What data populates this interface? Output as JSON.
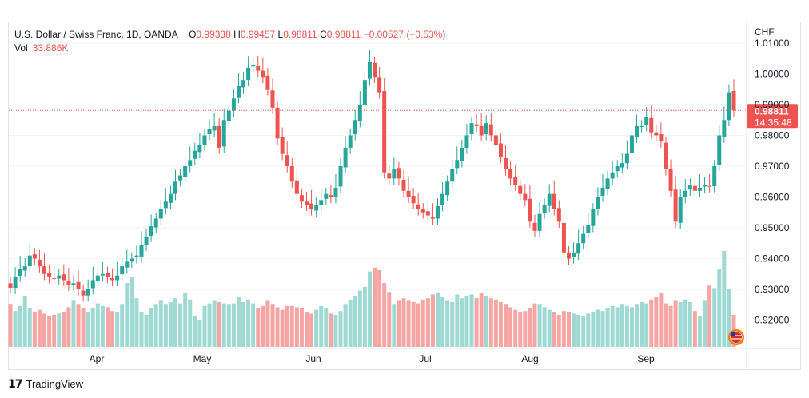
{
  "header": {
    "symbol": "U.S. Dollar / Swiss Franc, 1D, OANDA",
    "o_label": "O",
    "o_value": "0.99338",
    "h_label": "H",
    "h_value": "0.99457",
    "l_label": "L",
    "l_value": "0.98811",
    "c_label": "C",
    "c_value": "0.98811",
    "change": "−0.00527 (−0.53%)",
    "vol_label": "Vol",
    "vol_value": "33.886K"
  },
  "price_tag": {
    "price": "0.98811",
    "countdown": "14:35:48"
  },
  "footer": {
    "brand": "TradingView"
  },
  "colors": {
    "up": "#26a69a",
    "down": "#ef5350",
    "up_vol": "#9fd9d3",
    "down_vol": "#f5a6a4"
  },
  "chart_data": {
    "type": "candlestick",
    "currency_label": "CHF",
    "y_ticks": [
      "1.01000",
      "1.00000",
      "0.99000",
      "0.98000",
      "0.97000",
      "0.96000",
      "0.95000",
      "0.94000",
      "0.93000",
      "0.92000"
    ],
    "x_labels": [
      "Apr",
      "May",
      "Jun",
      "Jul",
      "Aug",
      "Sep"
    ],
    "ylim": [
      0.912,
      1.012
    ],
    "last_price": 0.98811,
    "close": [
      0.9305,
      0.934,
      0.9365,
      0.9375,
      0.941,
      0.94,
      0.9375,
      0.935,
      0.934,
      0.9335,
      0.9345,
      0.933,
      0.9315,
      0.932,
      0.93,
      0.928,
      0.93,
      0.933,
      0.9345,
      0.935,
      0.934,
      0.933,
      0.9345,
      0.9375,
      0.939,
      0.94,
      0.941,
      0.9445,
      0.947,
      0.9505,
      0.953,
      0.956,
      0.9585,
      0.961,
      0.965,
      0.967,
      0.97,
      0.972,
      0.975,
      0.977,
      0.98,
      0.982,
      0.983,
      0.976,
      0.985,
      0.988,
      0.992,
      0.996,
      0.998,
      1.002,
      1.003,
      1.001,
      0.999,
      0.995,
      0.989,
      0.979,
      0.974,
      0.97,
      0.965,
      0.961,
      0.9585,
      0.9575,
      0.956,
      0.9575,
      0.959,
      0.961,
      0.96,
      0.963,
      0.97,
      0.976,
      0.98,
      0.985,
      0.99,
      0.998,
      1.004,
      0.999,
      0.994,
      0.968,
      0.966,
      0.969,
      0.966,
      0.962,
      0.96,
      0.958,
      0.956,
      0.955,
      0.954,
      0.953,
      0.957,
      0.961,
      0.965,
      0.969,
      0.972,
      0.976,
      0.98,
      0.984,
      0.983,
      0.98,
      0.984,
      0.98,
      0.977,
      0.973,
      0.969,
      0.966,
      0.964,
      0.961,
      0.959,
      0.952,
      0.949,
      0.9545,
      0.9575,
      0.961,
      0.956,
      0.952,
      0.942,
      0.94,
      0.942,
      0.945,
      0.948,
      0.951,
      0.956,
      0.96,
      0.963,
      0.966,
      0.968,
      0.97,
      0.971,
      0.974,
      0.98,
      0.983,
      0.983,
      0.986,
      0.981,
      0.98,
      0.978,
      0.969,
      0.962,
      0.952,
      0.96,
      0.962,
      0.964,
      0.962,
      0.963,
      0.964,
      0.9635,
      0.97,
      0.98,
      0.985,
      0.994,
      0.9881
    ],
    "volume_rel": [
      0.33,
      0.28,
      0.32,
      0.4,
      0.3,
      0.27,
      0.29,
      0.26,
      0.24,
      0.25,
      0.26,
      0.27,
      0.31,
      0.36,
      0.33,
      0.3,
      0.27,
      0.3,
      0.34,
      0.32,
      0.31,
      0.28,
      0.27,
      0.33,
      0.5,
      0.55,
      0.38,
      0.27,
      0.25,
      0.3,
      0.33,
      0.36,
      0.33,
      0.35,
      0.38,
      0.34,
      0.42,
      0.37,
      0.24,
      0.21,
      0.32,
      0.34,
      0.36,
      0.35,
      0.34,
      0.33,
      0.34,
      0.39,
      0.35,
      0.37,
      0.34,
      0.3,
      0.32,
      0.36,
      0.33,
      0.31,
      0.29,
      0.32,
      0.32,
      0.31,
      0.3,
      0.27,
      0.26,
      0.29,
      0.32,
      0.3,
      0.26,
      0.25,
      0.28,
      0.33,
      0.37,
      0.4,
      0.44,
      0.47,
      0.59,
      0.62,
      0.6,
      0.5,
      0.43,
      0.33,
      0.36,
      0.38,
      0.36,
      0.35,
      0.34,
      0.37,
      0.38,
      0.41,
      0.42,
      0.39,
      0.36,
      0.35,
      0.41,
      0.38,
      0.4,
      0.41,
      0.38,
      0.42,
      0.4,
      0.38,
      0.37,
      0.35,
      0.33,
      0.31,
      0.29,
      0.27,
      0.28,
      0.3,
      0.34,
      0.33,
      0.31,
      0.29,
      0.27,
      0.25,
      0.28,
      0.27,
      0.26,
      0.25,
      0.24,
      0.26,
      0.27,
      0.29,
      0.28,
      0.3,
      0.32,
      0.31,
      0.33,
      0.32,
      0.31,
      0.33,
      0.35,
      0.34,
      0.37,
      0.39,
      0.42,
      0.34,
      0.32,
      0.36,
      0.35,
      0.37,
      0.35,
      0.28,
      0.24,
      0.36,
      0.48,
      0.46,
      0.61,
      0.75,
      0.45,
      0.25
    ]
  }
}
